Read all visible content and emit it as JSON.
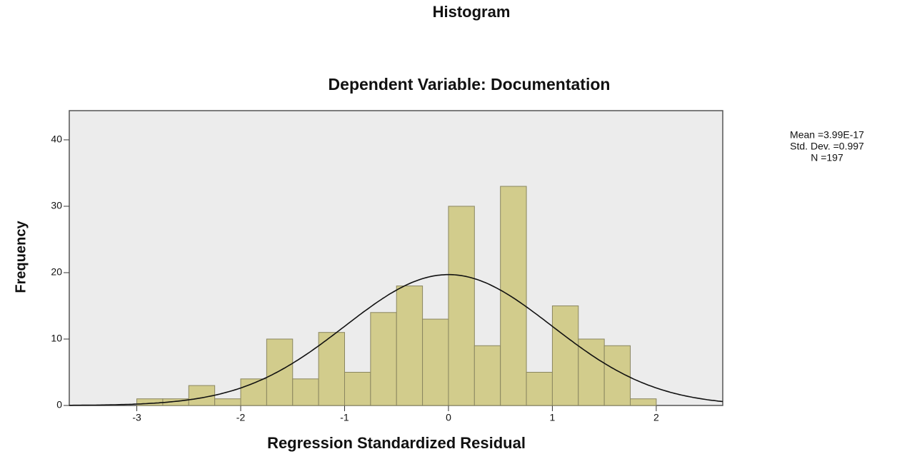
{
  "chart_data": {
    "type": "histogram",
    "title": "Histogram",
    "subtitle": "Dependent Variable: Documentation",
    "x_label": "Regression Standardized Residual",
    "y_label": "Frequency",
    "bins": [
      -3,
      -2.75,
      -2.5,
      -2.25,
      -2,
      -1.75,
      -1.5,
      -1.25,
      -1,
      -0.75,
      -0.5,
      -0.25,
      0,
      0.25,
      0.5,
      0.75,
      1,
      1.25,
      1.5,
      1.75,
      2
    ],
    "counts": [
      1,
      1,
      3,
      1,
      4,
      10,
      4,
      11,
      5,
      14,
      18,
      13,
      30,
      9,
      33,
      5,
      15,
      10,
      9,
      1
    ],
    "color": "#d2cc8c",
    "xlim": [
      -3.65,
      2.64
    ],
    "ylim": [
      0,
      44.4
    ],
    "xticks": [
      -3,
      -2,
      -1,
      0,
      1,
      2
    ],
    "yticks": [
      0,
      10,
      20,
      30,
      40
    ],
    "normal_curve": true,
    "stats": [
      {
        "value": 3.99e-17,
        "label": "Mean =3.99E-17"
      },
      {
        "value": 0.997,
        "label": "Std. Dev. =0.997"
      },
      {
        "value": 197,
        "label": "N =197"
      }
    ]
  }
}
